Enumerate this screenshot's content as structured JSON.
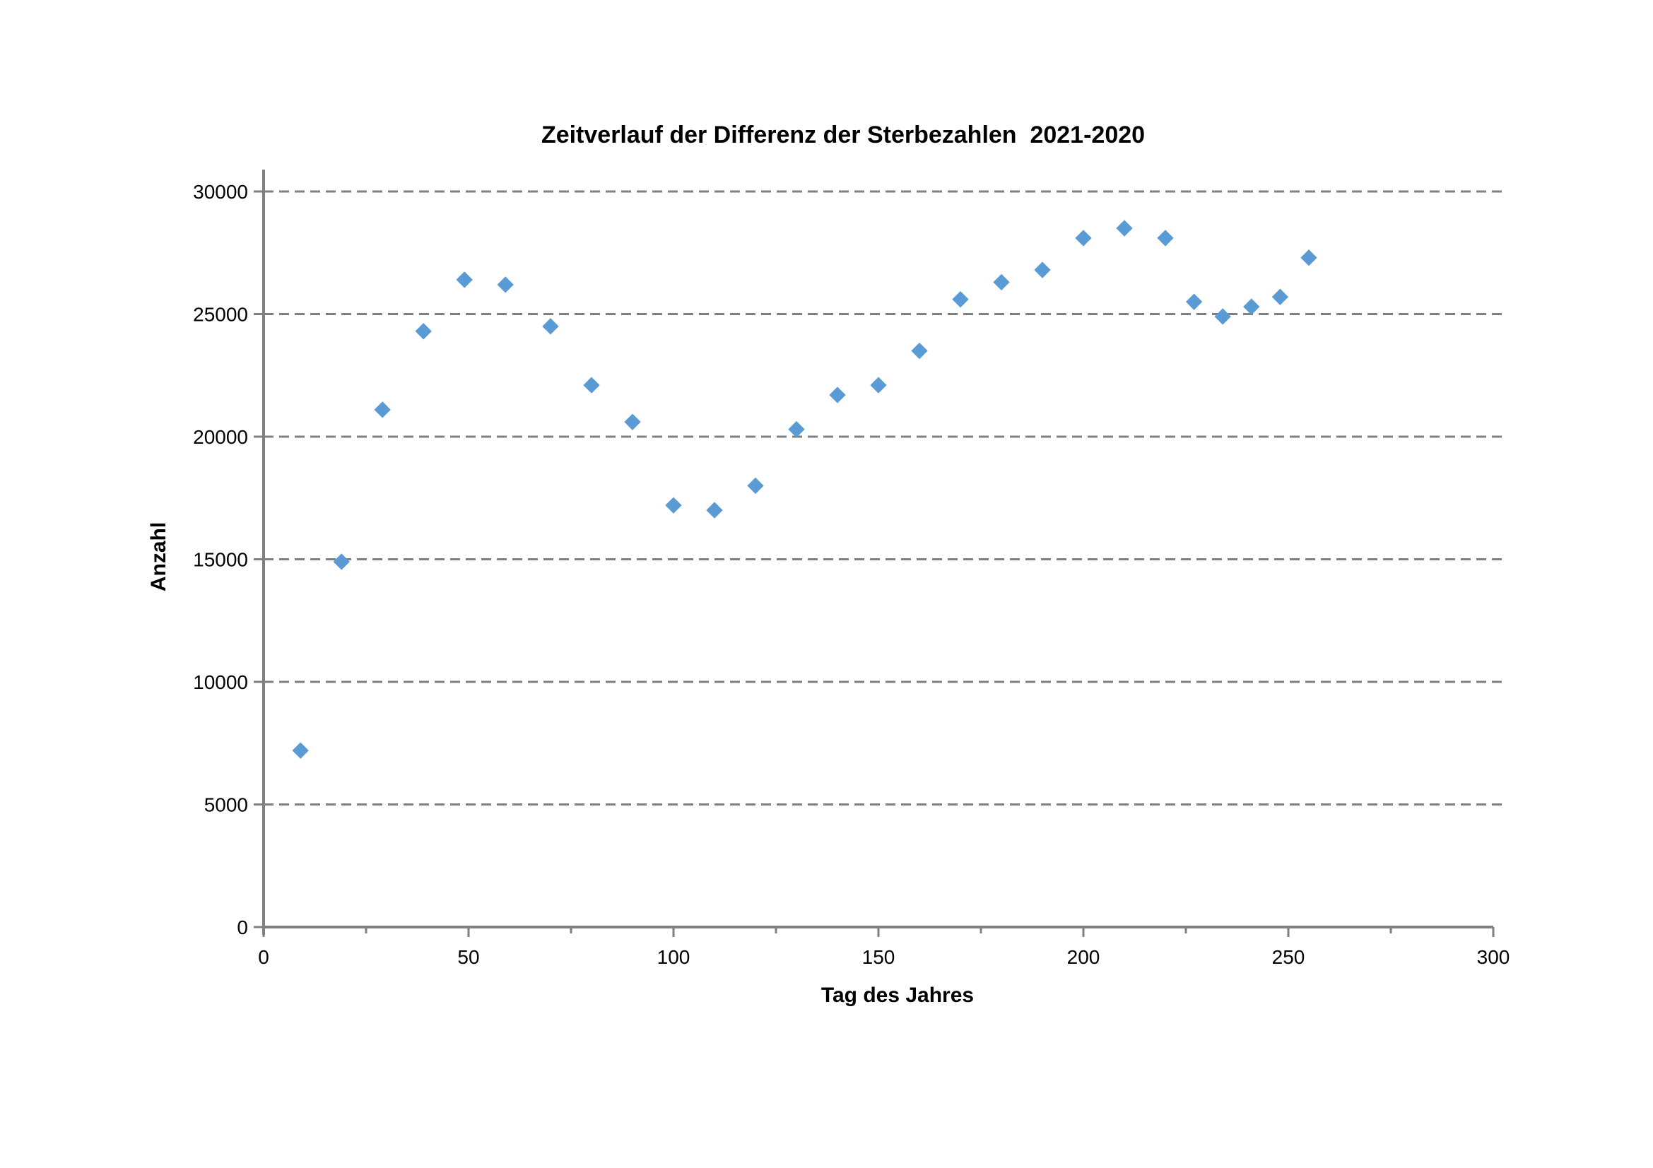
{
  "chart_data": {
    "type": "scatter",
    "title": "Zeitverlauf der Differenz der Sterbezahlen  2021-2020",
    "xlabel": "Tag des Jahres",
    "ylabel": "Anzahl",
    "xlim": [
      0,
      300
    ],
    "ylim": [
      0,
      30000
    ],
    "x_ticks": [
      0,
      50,
      100,
      150,
      200,
      250,
      300
    ],
    "x_minor_ticks": [
      25,
      75,
      125,
      175,
      225,
      275
    ],
    "y_ticks": [
      0,
      5000,
      10000,
      15000,
      20000,
      25000,
      30000
    ],
    "grid": "horizontal-dashed-gray",
    "legend": "none",
    "marker": "diamond",
    "marker_color": "#5B9BD5",
    "axis_color": "#808080",
    "x": [
      9,
      19,
      29,
      39,
      49,
      59,
      70,
      80,
      90,
      100,
      110,
      120,
      130,
      140,
      150,
      160,
      170,
      180,
      190,
      200,
      210,
      220,
      227,
      234,
      241,
      248,
      255
    ],
    "y": [
      7200,
      14900,
      21100,
      24300,
      26400,
      26200,
      24500,
      22100,
      20600,
      17200,
      17000,
      18000,
      20300,
      21700,
      22100,
      23500,
      25600,
      26300,
      26800,
      28100,
      28500,
      28100,
      25500,
      24900,
      25300,
      25700,
      27300
    ]
  }
}
